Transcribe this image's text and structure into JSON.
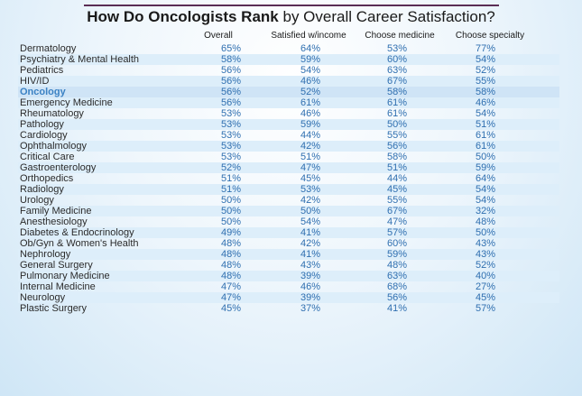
{
  "title": {
    "bold": "How Do Oncologists Rank",
    "rest": " by Overall Career Satisfaction?"
  },
  "colors": {
    "value": "#2f6fb0",
    "highlight": "#3b82c4",
    "rule": "#5a2d55"
  },
  "chart_data": {
    "type": "table",
    "title": "How Do Oncologists Rank by Overall Career Satisfaction?",
    "columns": [
      "Overall",
      "Satisfied w/income",
      "Choose medicine",
      "Choose specialty"
    ],
    "highlight": "Oncology",
    "rows": [
      {
        "label": "Dermatology",
        "values": [
          "65%",
          "64%",
          "53%",
          "77%"
        ]
      },
      {
        "label": "Psychiatry & Mental Health",
        "values": [
          "58%",
          "59%",
          "60%",
          "54%"
        ]
      },
      {
        "label": "Pediatrics",
        "values": [
          "56%",
          "54%",
          "63%",
          "52%"
        ]
      },
      {
        "label": "HIV/ID",
        "values": [
          "56%",
          "46%",
          "67%",
          "55%"
        ]
      },
      {
        "label": "Oncology",
        "values": [
          "56%",
          "52%",
          "58%",
          "58%"
        ]
      },
      {
        "label": "Emergency Medicine",
        "values": [
          "56%",
          "61%",
          "61%",
          "46%"
        ]
      },
      {
        "label": "Rheumatology",
        "values": [
          "53%",
          "46%",
          "61%",
          "54%"
        ]
      },
      {
        "label": "Pathology",
        "values": [
          "53%",
          "59%",
          "50%",
          "51%"
        ]
      },
      {
        "label": "Cardiology",
        "values": [
          "53%",
          "44%",
          "55%",
          "61%"
        ]
      },
      {
        "label": "Ophthalmology",
        "values": [
          "53%",
          "42%",
          "56%",
          "61%"
        ]
      },
      {
        "label": "Critical Care",
        "values": [
          "53%",
          "51%",
          "58%",
          "50%"
        ]
      },
      {
        "label": "Gastroenterology",
        "values": [
          "52%",
          "47%",
          "51%",
          "59%"
        ]
      },
      {
        "label": "Orthopedics",
        "values": [
          "51%",
          "45%",
          "44%",
          "64%"
        ]
      },
      {
        "label": "Radiology",
        "values": [
          "51%",
          "53%",
          "45%",
          "54%"
        ]
      },
      {
        "label": "Urology",
        "values": [
          "50%",
          "42%",
          "55%",
          "54%"
        ]
      },
      {
        "label": "Family Medicine",
        "values": [
          "50%",
          "50%",
          "67%",
          "32%"
        ]
      },
      {
        "label": "Anesthesiology",
        "values": [
          "50%",
          "54%",
          "47%",
          "48%"
        ]
      },
      {
        "label": "Diabetes & Endocrinology",
        "values": [
          "49%",
          "41%",
          "57%",
          "50%"
        ]
      },
      {
        "label": "Ob/Gyn & Women's Health",
        "values": [
          "48%",
          "42%",
          "60%",
          "43%"
        ]
      },
      {
        "label": "Nephrology",
        "values": [
          "48%",
          "41%",
          "59%",
          "43%"
        ]
      },
      {
        "label": "General Surgery",
        "values": [
          "48%",
          "43%",
          "48%",
          "52%"
        ]
      },
      {
        "label": "Pulmonary Medicine",
        "values": [
          "48%",
          "39%",
          "63%",
          "40%"
        ]
      },
      {
        "label": "Internal Medicine",
        "values": [
          "47%",
          "46%",
          "68%",
          "27%"
        ]
      },
      {
        "label": "Neurology",
        "values": [
          "47%",
          "39%",
          "56%",
          "45%"
        ]
      },
      {
        "label": "Plastic Surgery",
        "values": [
          "45%",
          "37%",
          "41%",
          "57%"
        ]
      }
    ]
  }
}
